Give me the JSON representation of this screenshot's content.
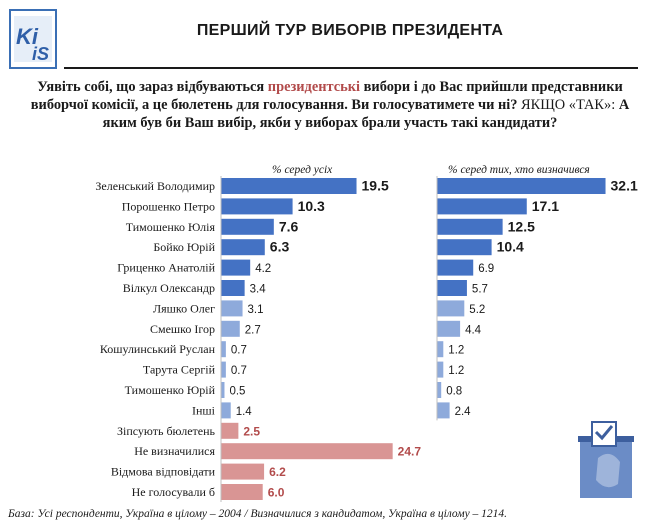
{
  "header": {
    "logo_text": "KIIS",
    "title": "ПЕРШИЙ ТУР ВИБОРІВ ПРЕЗИДЕНТА"
  },
  "question": {
    "part1": "Уявіть собі, що зараз відбуваються ",
    "highlight": "президентські",
    "part2": " вибори і до Вас прийшли представники виборчої комісії, а це бюлетень для голосування. Ви голосуватимете чи ні? ",
    "conditional": "ЯКЩО «ТАК»:",
    "part3": " А яким був би Ваш вибір, якби у виборах брали участь такі кандидати?"
  },
  "footer": "База: Усі респонденти, Україна в цілому – 2004 / Визначилися з кандидатом, Україна в цілому – 1214.",
  "colors": {
    "dark_blue": "#4472c4",
    "light_blue": "#8eaadb",
    "pink": "#d99594",
    "red_text": "#b24b4b"
  },
  "chart_data": [
    {
      "type": "bar",
      "orientation": "horizontal",
      "title": "% серед усіх",
      "categories": [
        "Зеленський Володимир",
        "Порошенко Петро",
        "Тимошенко Юлія",
        "Бойко Юрій",
        "Гриценко Анатолій",
        "Вілкул Олександр",
        "Ляшко Олег",
        "Смешко Ігор",
        "Кошулинський Руслан",
        "Тарута Сергій",
        "Тимошенко Юрій",
        "Інші",
        "Зіпсують бюлетень",
        "Не визначилися",
        "Відмова відповідати",
        "Не голосували б"
      ],
      "values": [
        19.5,
        10.3,
        7.6,
        6.3,
        4.2,
        3.4,
        3.1,
        2.7,
        0.7,
        0.7,
        0.5,
        1.4,
        2.5,
        24.7,
        6.2,
        6.0
      ],
      "labels": [
        "19.5",
        "10.3",
        "7.6",
        "6.3",
        "4.2",
        "3.4",
        "3.1",
        "2.7",
        "0.7",
        "0.7",
        "0.5",
        "1.4",
        "2.5",
        "24.7",
        "6.2",
        "6.0"
      ],
      "bar_styles": [
        "dark",
        "dark",
        "dark",
        "dark",
        "dark",
        "dark",
        "light",
        "light",
        "light",
        "light",
        "light",
        "light",
        "pink",
        "pink",
        "pink",
        "pink"
      ]
    },
    {
      "type": "bar",
      "orientation": "horizontal",
      "title": "% серед тих, хто визначився",
      "categories": [
        "Зеленський Володимир",
        "Порошенко Петро",
        "Тимошенко Юлія",
        "Бойко Юрій",
        "Гриценко Анатолій",
        "Вілкул Олександр",
        "Ляшко Олег",
        "Смешко Ігор",
        "Кошулинський Руслан",
        "Тарута Сергій",
        "Тимошенко Юрій",
        "Інші"
      ],
      "values": [
        32.1,
        17.1,
        12.5,
        10.4,
        6.9,
        5.7,
        5.2,
        4.4,
        1.2,
        1.2,
        0.8,
        2.4
      ],
      "labels": [
        "32.1",
        "17.1",
        "12.5",
        "10.4",
        "6.9",
        "5.7",
        "5.2",
        "4.4",
        "1.2",
        "1.2",
        "0.8",
        "2.4"
      ],
      "bar_styles": [
        "dark",
        "dark",
        "dark",
        "dark",
        "dark",
        "dark",
        "light",
        "light",
        "light",
        "light",
        "light",
        "light"
      ]
    }
  ]
}
